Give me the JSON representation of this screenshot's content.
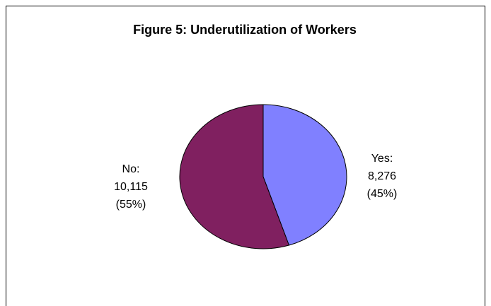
{
  "chart_data": {
    "type": "pie",
    "title": "Figure 5:  Underutilization of Workers",
    "categories": [
      "Yes:",
      "No:"
    ],
    "values": [
      8276,
      10115
    ],
    "value_labels": [
      "8,276",
      "10,115"
    ],
    "percents": [
      45,
      55
    ],
    "percent_labels": [
      "(45%)",
      "(55%)"
    ],
    "colors": [
      "#8080ff",
      "#802060"
    ]
  }
}
